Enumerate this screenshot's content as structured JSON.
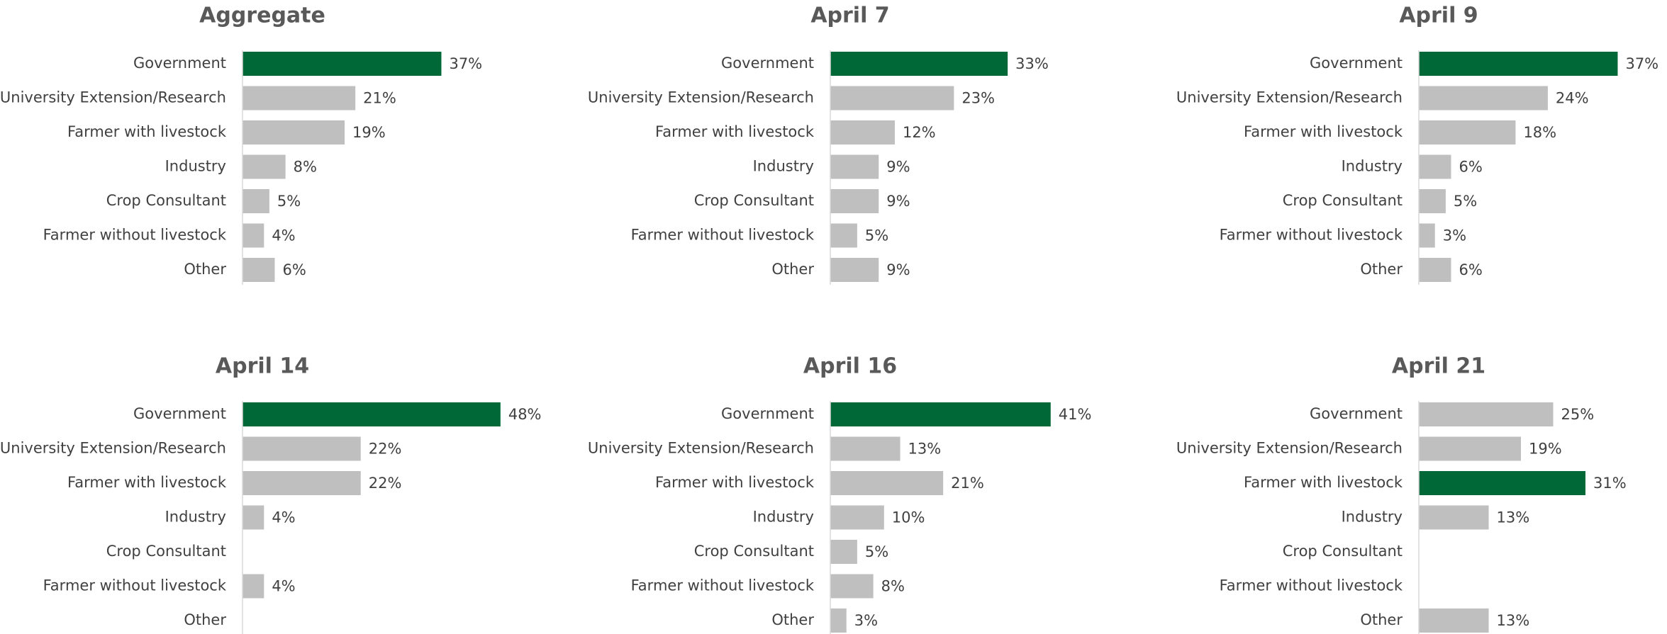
{
  "chart_data": [
    {
      "type": "bar",
      "title": "Aggregate",
      "categories": [
        "Government",
        "University Extension/Research",
        "Farmer with livestock",
        "Industry",
        "Crop Consultant",
        "Farmer without livestock",
        "Other"
      ],
      "values": [
        37,
        21,
        19,
        8,
        5,
        4,
        6
      ],
      "value_labels": [
        "37%",
        "21%",
        "19%",
        "8%",
        "5%",
        "4%",
        "6%"
      ],
      "colors": [
        "#006837",
        "#bfbfbf",
        "#bfbfbf",
        "#bfbfbf",
        "#bfbfbf",
        "#bfbfbf",
        "#bfbfbf"
      ]
    },
    {
      "type": "bar",
      "title": "April 7",
      "categories": [
        "Government",
        "University Extension/Research",
        "Farmer with livestock",
        "Industry",
        "Crop Consultant",
        "Farmer without livestock",
        "Other"
      ],
      "values": [
        33,
        23,
        12,
        9,
        9,
        5,
        9
      ],
      "value_labels": [
        "33%",
        "23%",
        "12%",
        "9%",
        "9%",
        "5%",
        "9%"
      ],
      "colors": [
        "#006837",
        "#bfbfbf",
        "#bfbfbf",
        "#bfbfbf",
        "#bfbfbf",
        "#bfbfbf",
        "#bfbfbf"
      ]
    },
    {
      "type": "bar",
      "title": "April 9",
      "categories": [
        "Government",
        "University Extension/Research",
        "Farmer with livestock",
        "Industry",
        "Crop Consultant",
        "Farmer without livestock",
        "Other"
      ],
      "values": [
        37,
        24,
        18,
        6,
        5,
        3,
        6
      ],
      "value_labels": [
        "37%",
        "24%",
        "18%",
        "6%",
        "5%",
        "3%",
        "6%"
      ],
      "colors": [
        "#006837",
        "#bfbfbf",
        "#bfbfbf",
        "#bfbfbf",
        "#bfbfbf",
        "#bfbfbf",
        "#bfbfbf"
      ]
    },
    {
      "type": "bar",
      "title": "April 14",
      "categories": [
        "Government",
        "University Extension/Research",
        "Farmer with livestock",
        "Industry",
        "Crop Consultant",
        "Farmer without livestock",
        "Other"
      ],
      "values": [
        48,
        22,
        22,
        4,
        null,
        4,
        null
      ],
      "value_labels": [
        "48%",
        "22%",
        "22%",
        "4%",
        null,
        "4%",
        null
      ],
      "colors": [
        "#006837",
        "#bfbfbf",
        "#bfbfbf",
        "#bfbfbf",
        "#bfbfbf",
        "#bfbfbf",
        "#bfbfbf"
      ]
    },
    {
      "type": "bar",
      "title": "April 16",
      "categories": [
        "Government",
        "University Extension/Research",
        "Farmer with livestock",
        "Industry",
        "Crop Consultant",
        "Farmer without livestock",
        "Other"
      ],
      "values": [
        41,
        13,
        21,
        10,
        5,
        8,
        3
      ],
      "value_labels": [
        "41%",
        "13%",
        "21%",
        "10%",
        "5%",
        "8%",
        "3%"
      ],
      "colors": [
        "#006837",
        "#bfbfbf",
        "#bfbfbf",
        "#bfbfbf",
        "#bfbfbf",
        "#bfbfbf",
        "#bfbfbf"
      ]
    },
    {
      "type": "bar",
      "title": "April 21",
      "categories": [
        "Government",
        "University Extension/Research",
        "Farmer with livestock",
        "Industry",
        "Crop Consultant",
        "Farmer without livestock",
        "Other"
      ],
      "values": [
        25,
        19,
        31,
        13,
        null,
        null,
        13
      ],
      "value_labels": [
        "25%",
        "19%",
        "31%",
        "13%",
        null,
        null,
        "13%"
      ],
      "colors": [
        "#bfbfbf",
        "#bfbfbf",
        "#006837",
        "#bfbfbf",
        "#bfbfbf",
        "#bfbfbf",
        "#bfbfbf"
      ]
    }
  ]
}
